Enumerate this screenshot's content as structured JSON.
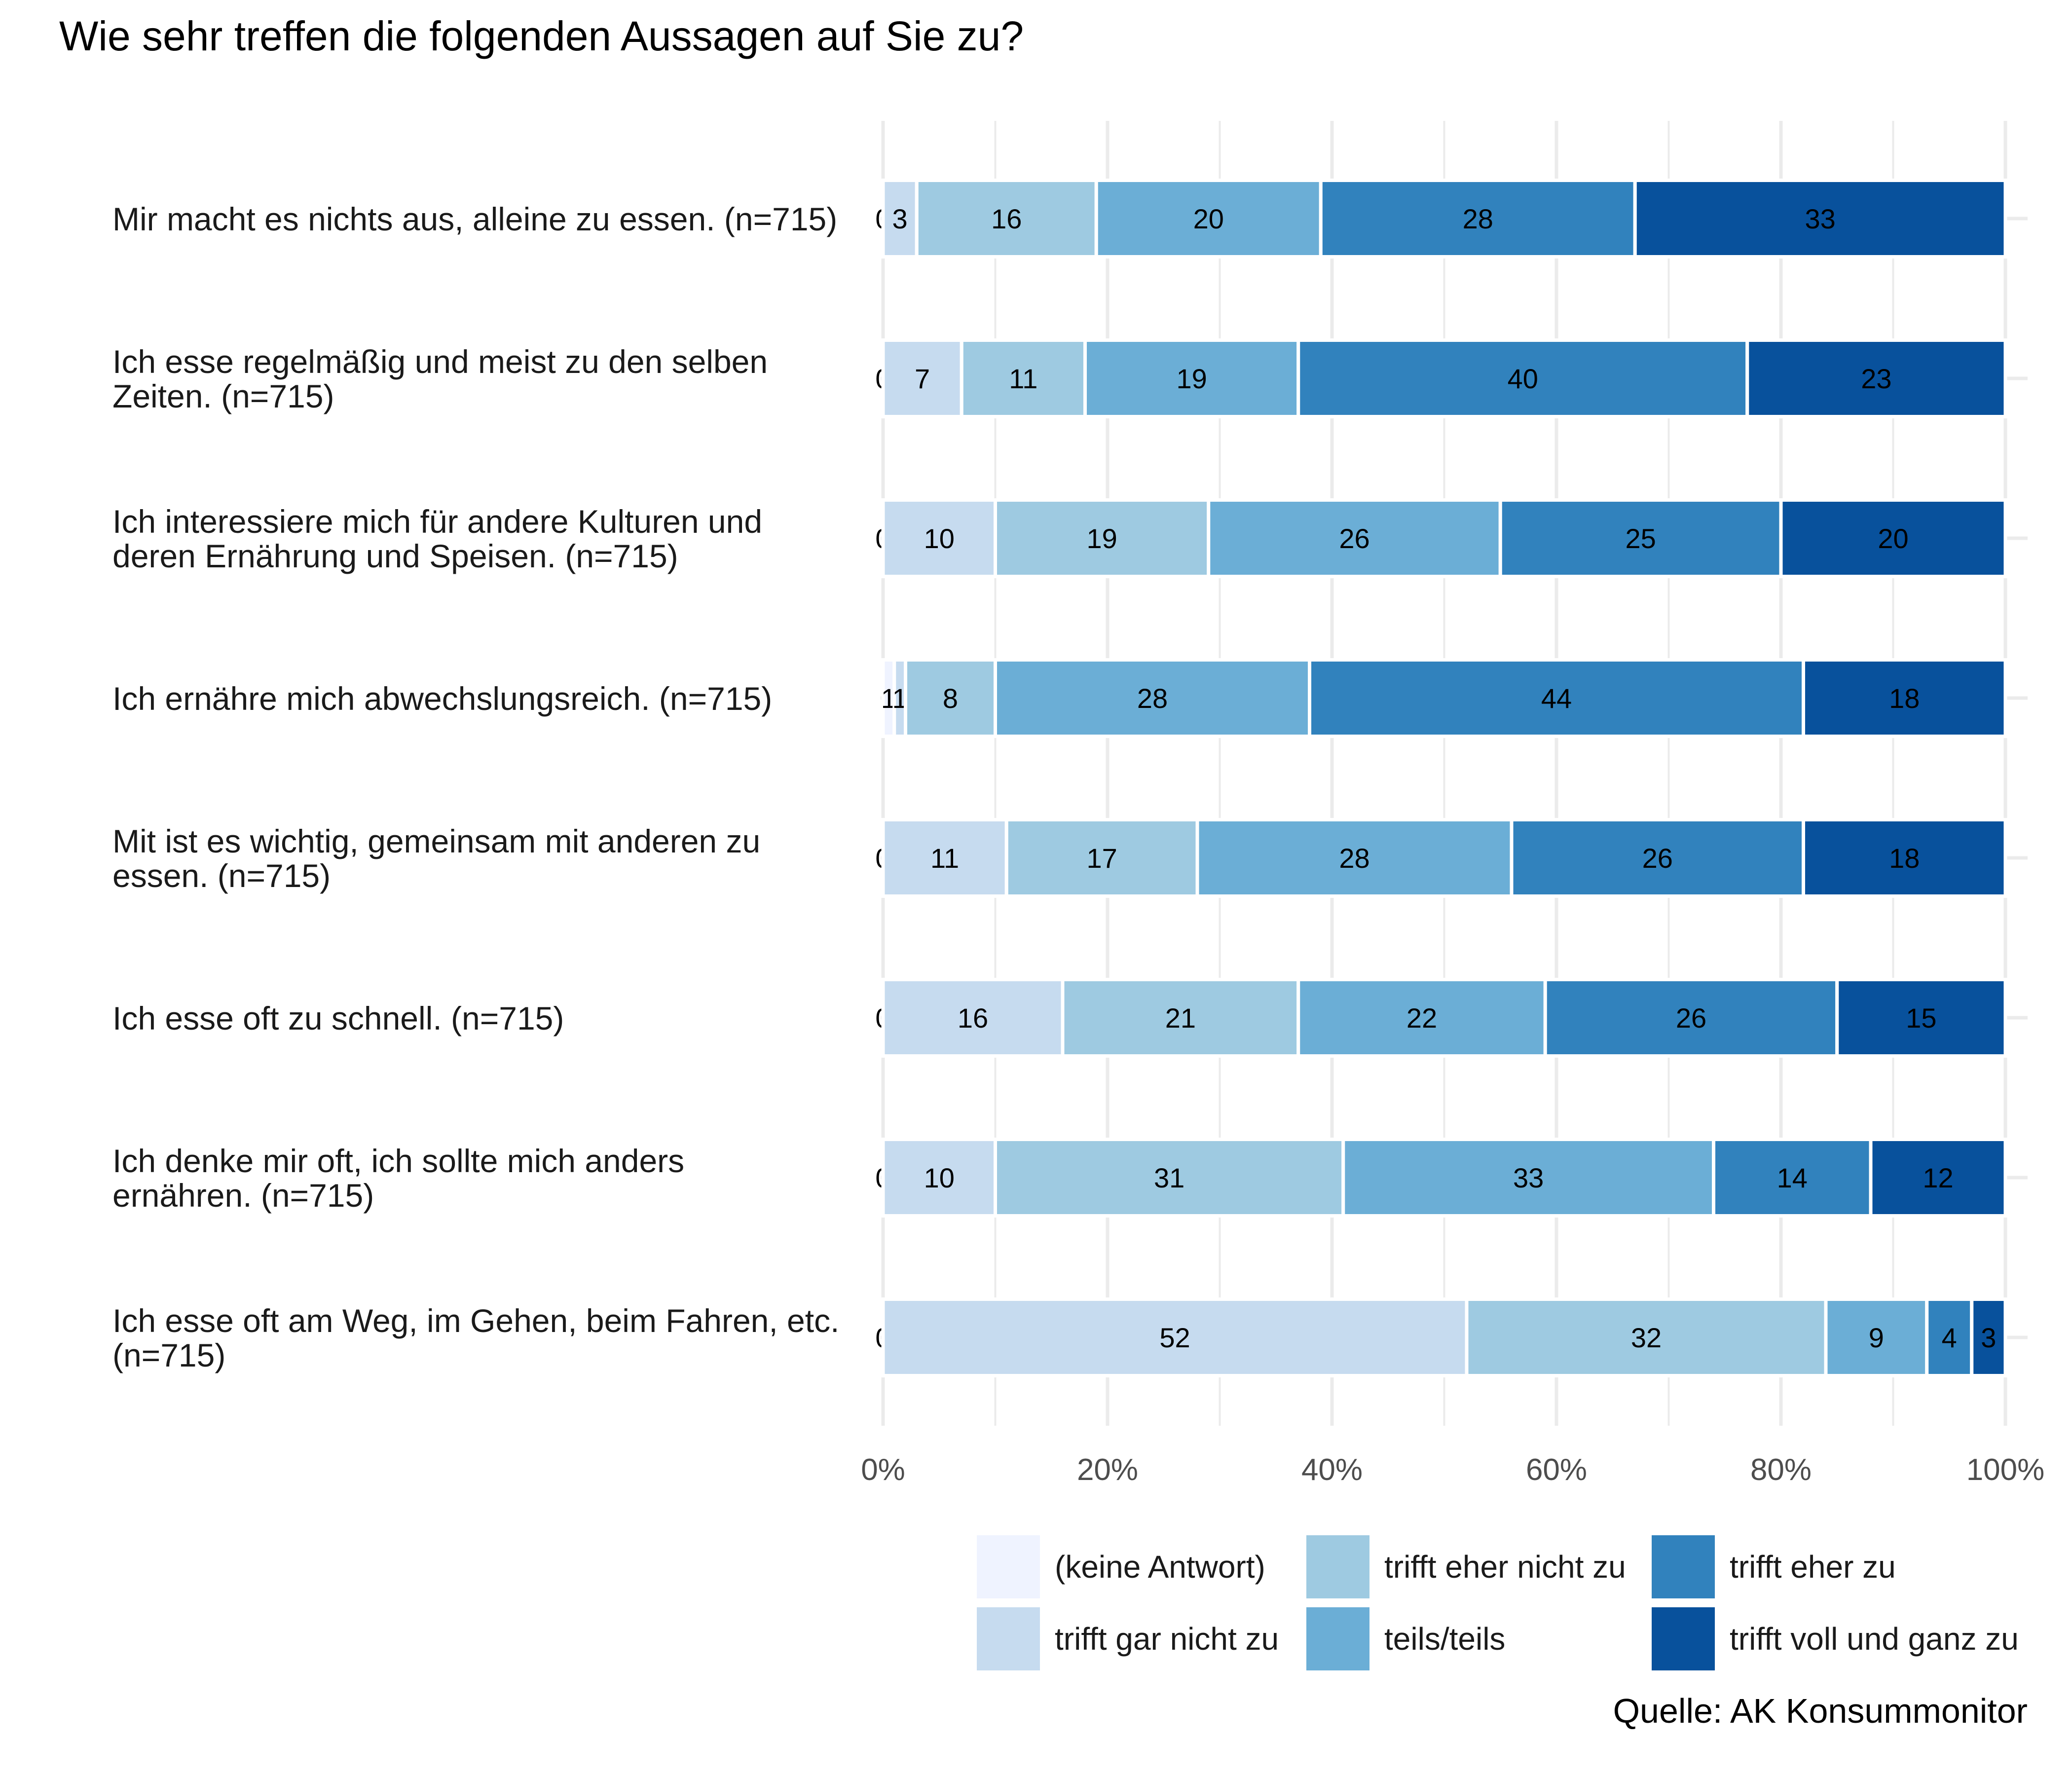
{
  "title": "Wie sehr treffen die folgenden Aussagen auf Sie zu?",
  "source": "Quelle: AK Konsummonitor",
  "chart_data": {
    "type": "bar",
    "orientation": "horizontal",
    "stacked": true,
    "percent": true,
    "title": "Wie sehr treffen die folgenden Aussagen auf Sie zu?",
    "xlim": [
      0,
      100
    ],
    "x_ticks": [
      "0%",
      "20%",
      "40%",
      "60%",
      "80%",
      "100%"
    ],
    "legend_position": "bottom",
    "categories": [
      {
        "lines": [
          "Mir macht es nichts aus, alleine zu essen. (n=715)"
        ]
      },
      {
        "lines": [
          "Ich esse regelmäßig und meist zu den selben",
          "Zeiten. (n=715)"
        ]
      },
      {
        "lines": [
          "Ich interessiere mich für andere Kulturen und",
          "deren Ernährung und Speisen. (n=715)"
        ]
      },
      {
        "lines": [
          "Ich ernähre mich abwechslungsreich. (n=715)"
        ]
      },
      {
        "lines": [
          "Mit ist es wichtig, gemeinsam mit anderen zu",
          "essen. (n=715)"
        ]
      },
      {
        "lines": [
          "Ich esse oft zu schnell. (n=715)"
        ]
      },
      {
        "lines": [
          "Ich denke mir oft, ich sollte mich anders",
          "ernähren. (n=715)"
        ]
      },
      {
        "lines": [
          "Ich esse oft am Weg, im Gehen, beim Fahren, etc.",
          "(n=715)"
        ]
      }
    ],
    "series": [
      {
        "name": "(keine Antwort)",
        "color": "#eff3ff",
        "values": [
          0,
          0,
          0,
          1,
          0,
          0,
          0,
          0
        ]
      },
      {
        "name": "trifft gar nicht zu",
        "color": "#c6dbef",
        "values": [
          3,
          7,
          10,
          1,
          11,
          16,
          10,
          52
        ]
      },
      {
        "name": "trifft eher nicht zu",
        "color": "#9ecae1",
        "values": [
          16,
          11,
          19,
          8,
          17,
          21,
          31,
          32
        ]
      },
      {
        "name": "teils/teils",
        "color": "#6baed6",
        "values": [
          20,
          19,
          26,
          28,
          28,
          22,
          33,
          9
        ]
      },
      {
        "name": "trifft eher zu",
        "color": "#3182bd",
        "values": [
          28,
          40,
          25,
          44,
          26,
          26,
          14,
          4
        ]
      },
      {
        "name": "trifft voll und ganz zu",
        "color": "#08519c",
        "values": [
          33,
          23,
          20,
          18,
          18,
          15,
          12,
          3
        ]
      }
    ]
  }
}
